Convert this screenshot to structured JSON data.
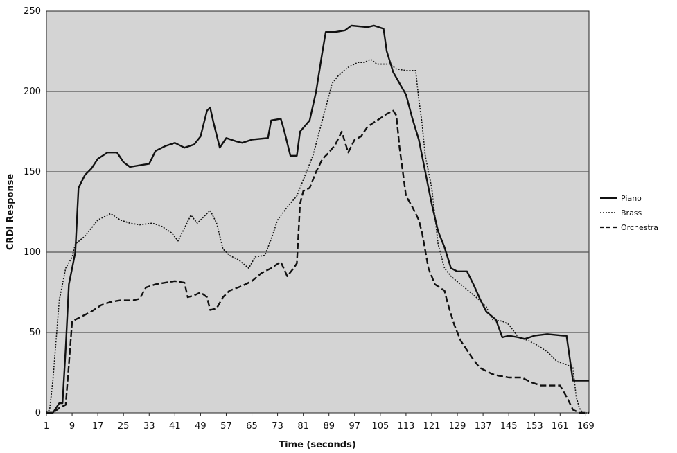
{
  "chart_data": {
    "type": "line",
    "xlabel": "Time (seconds)",
    "ylabel": "CRDI Response",
    "x_ticks": [
      "1",
      "9",
      "17",
      "25",
      "33",
      "41",
      "49",
      "57",
      "65",
      "73",
      "81",
      "89",
      "97",
      "105",
      "113",
      "121",
      "129",
      "137",
      "145",
      "153",
      "161",
      "169"
    ],
    "y_ticks": [
      "0",
      "50",
      "100",
      "150",
      "200",
      "250"
    ],
    "xlim": [
      1,
      170
    ],
    "ylim": [
      0,
      250
    ],
    "grid": "horizontal",
    "legend_position": "right",
    "colors": {
      "plot_bg": "#d4d4d4",
      "line": "#111111",
      "grid": "#555555"
    },
    "series": [
      {
        "name": "Piano",
        "style": "solid",
        "points": [
          [
            1,
            0
          ],
          [
            3,
            0
          ],
          [
            4,
            3
          ],
          [
            5,
            6
          ],
          [
            6,
            6
          ],
          [
            7,
            40
          ],
          [
            8,
            80
          ],
          [
            9,
            90
          ],
          [
            10,
            100
          ],
          [
            11,
            140
          ],
          [
            13,
            148
          ],
          [
            15,
            152
          ],
          [
            17,
            158
          ],
          [
            20,
            162
          ],
          [
            23,
            162
          ],
          [
            25,
            156
          ],
          [
            27,
            153
          ],
          [
            30,
            154
          ],
          [
            33,
            155
          ],
          [
            35,
            163
          ],
          [
            38,
            166
          ],
          [
            41,
            168
          ],
          [
            44,
            165
          ],
          [
            47,
            167
          ],
          [
            49,
            172
          ],
          [
            51,
            188
          ],
          [
            52,
            190
          ],
          [
            53,
            181
          ],
          [
            55,
            165
          ],
          [
            57,
            171
          ],
          [
            60,
            169
          ],
          [
            62,
            168
          ],
          [
            65,
            170
          ],
          [
            70,
            171
          ],
          [
            71,
            182
          ],
          [
            74,
            183
          ],
          [
            75,
            176
          ],
          [
            77,
            160
          ],
          [
            79,
            160
          ],
          [
            80,
            175
          ],
          [
            83,
            182
          ],
          [
            85,
            200
          ],
          [
            87,
            225
          ],
          [
            88,
            237
          ],
          [
            91,
            237
          ],
          [
            94,
            238
          ],
          [
            96,
            241
          ],
          [
            101,
            240
          ],
          [
            103,
            241
          ],
          [
            106,
            239
          ],
          [
            107,
            225
          ],
          [
            109,
            212
          ],
          [
            113,
            198
          ],
          [
            115,
            183
          ],
          [
            117,
            170
          ],
          [
            119,
            150
          ],
          [
            121,
            130
          ],
          [
            123,
            113
          ],
          [
            125,
            103
          ],
          [
            127,
            90
          ],
          [
            129,
            88
          ],
          [
            132,
            88
          ],
          [
            134,
            80
          ],
          [
            136,
            71
          ],
          [
            138,
            63
          ],
          [
            141,
            58
          ],
          [
            143,
            47
          ],
          [
            145,
            48
          ],
          [
            148,
            47
          ],
          [
            150,
            46
          ],
          [
            153,
            48
          ],
          [
            157,
            49
          ],
          [
            162,
            48
          ],
          [
            163,
            48
          ],
          [
            165,
            20
          ],
          [
            167,
            20
          ],
          [
            170,
            20
          ]
        ]
      },
      {
        "name": "Brass",
        "style": "dotted",
        "points": [
          [
            1,
            0
          ],
          [
            2,
            2
          ],
          [
            3,
            20
          ],
          [
            4,
            45
          ],
          [
            5,
            70
          ],
          [
            7,
            90
          ],
          [
            9,
            97
          ],
          [
            10,
            105
          ],
          [
            13,
            110
          ],
          [
            15,
            115
          ],
          [
            17,
            120
          ],
          [
            21,
            124
          ],
          [
            24,
            120
          ],
          [
            27,
            118
          ],
          [
            30,
            117
          ],
          [
            34,
            118
          ],
          [
            37,
            116
          ],
          [
            40,
            112
          ],
          [
            42,
            107
          ],
          [
            44,
            115
          ],
          [
            46,
            123
          ],
          [
            48,
            118
          ],
          [
            50,
            122
          ],
          [
            52,
            126
          ],
          [
            54,
            118
          ],
          [
            56,
            102
          ],
          [
            58,
            98
          ],
          [
            61,
            95
          ],
          [
            64,
            90
          ],
          [
            66,
            97
          ],
          [
            69,
            98
          ],
          [
            71,
            108
          ],
          [
            73,
            120
          ],
          [
            76,
            128
          ],
          [
            79,
            135
          ],
          [
            82,
            150
          ],
          [
            84,
            160
          ],
          [
            86,
            175
          ],
          [
            88,
            190
          ],
          [
            90,
            205
          ],
          [
            92,
            210
          ],
          [
            95,
            215
          ],
          [
            98,
            218
          ],
          [
            100,
            218
          ],
          [
            102,
            220
          ],
          [
            104,
            217
          ],
          [
            108,
            217
          ],
          [
            110,
            214
          ],
          [
            113,
            213
          ],
          [
            116,
            213
          ],
          [
            117,
            195
          ],
          [
            118,
            180
          ],
          [
            119,
            160
          ],
          [
            121,
            140
          ],
          [
            123,
            105
          ],
          [
            125,
            90
          ],
          [
            127,
            85
          ],
          [
            130,
            80
          ],
          [
            133,
            75
          ],
          [
            136,
            70
          ],
          [
            138,
            66
          ],
          [
            140,
            58
          ],
          [
            143,
            57
          ],
          [
            145,
            55
          ],
          [
            148,
            47
          ],
          [
            151,
            45
          ],
          [
            154,
            42
          ],
          [
            157,
            38
          ],
          [
            160,
            32
          ],
          [
            163,
            30
          ],
          [
            165,
            28
          ],
          [
            166,
            10
          ],
          [
            167,
            3
          ],
          [
            168,
            0
          ],
          [
            170,
            0
          ]
        ]
      },
      {
        "name": "Orchestra",
        "style": "dashed",
        "points": [
          [
            1,
            0
          ],
          [
            3,
            0
          ],
          [
            5,
            3
          ],
          [
            7,
            5
          ],
          [
            8,
            30
          ],
          [
            9,
            57
          ],
          [
            12,
            60
          ],
          [
            15,
            63
          ],
          [
            18,
            67
          ],
          [
            21,
            69
          ],
          [
            24,
            70
          ],
          [
            28,
            70
          ],
          [
            30,
            71
          ],
          [
            32,
            78
          ],
          [
            35,
            80
          ],
          [
            38,
            81
          ],
          [
            41,
            82
          ],
          [
            44,
            81
          ],
          [
            45,
            72
          ],
          [
            47,
            73
          ],
          [
            49,
            75
          ],
          [
            51,
            72
          ],
          [
            52,
            64
          ],
          [
            54,
            65
          ],
          [
            56,
            72
          ],
          [
            58,
            76
          ],
          [
            62,
            79
          ],
          [
            65,
            82
          ],
          [
            68,
            87
          ],
          [
            71,
            90
          ],
          [
            74,
            94
          ],
          [
            76,
            85
          ],
          [
            78,
            90
          ],
          [
            79,
            93
          ],
          [
            80,
            130
          ],
          [
            81,
            138
          ],
          [
            83,
            140
          ],
          [
            85,
            150
          ],
          [
            87,
            158
          ],
          [
            89,
            162
          ],
          [
            91,
            167
          ],
          [
            93,
            175
          ],
          [
            95,
            162
          ],
          [
            97,
            170
          ],
          [
            99,
            172
          ],
          [
            101,
            178
          ],
          [
            104,
            182
          ],
          [
            107,
            186
          ],
          [
            109,
            188
          ],
          [
            110,
            185
          ],
          [
            111,
            165
          ],
          [
            112,
            150
          ],
          [
            113,
            135
          ],
          [
            115,
            128
          ],
          [
            117,
            120
          ],
          [
            118,
            112
          ],
          [
            120,
            90
          ],
          [
            122,
            80
          ],
          [
            125,
            76
          ],
          [
            126,
            68
          ],
          [
            128,
            55
          ],
          [
            130,
            45
          ],
          [
            132,
            39
          ],
          [
            134,
            33
          ],
          [
            136,
            28
          ],
          [
            138,
            26
          ],
          [
            140,
            24
          ],
          [
            142,
            23
          ],
          [
            145,
            22
          ],
          [
            149,
            22
          ],
          [
            152,
            19
          ],
          [
            155,
            17
          ],
          [
            157,
            17
          ],
          [
            161,
            17
          ],
          [
            163,
            10
          ],
          [
            165,
            2
          ],
          [
            167,
            0
          ],
          [
            170,
            0
          ]
        ]
      }
    ]
  }
}
